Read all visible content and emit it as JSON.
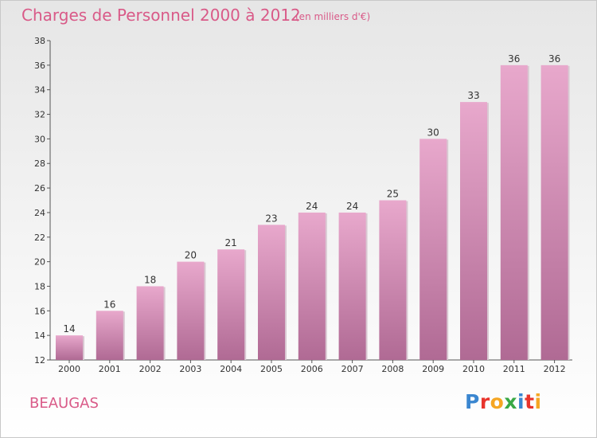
{
  "header": {
    "title": "Charges de Personnel 2000 à 2012",
    "subtitle": "(en milliers d'€)"
  },
  "footer": {
    "town": "BEAUGAS",
    "logo": "Proxiti",
    "logo_colors": [
      "#3a86d0",
      "#e8342c",
      "#f5a623",
      "#39a845",
      "#3a86d0",
      "#e8342c",
      "#f5a623"
    ]
  },
  "chart_data": {
    "type": "bar",
    "title": "Charges de Personnel 2000 à 2012",
    "subtitle": "(en milliers d'€)",
    "xlabel": "",
    "ylabel": "",
    "categories": [
      "2000",
      "2001",
      "2002",
      "2003",
      "2004",
      "2005",
      "2006",
      "2007",
      "2008",
      "2009",
      "2010",
      "2011",
      "2012"
    ],
    "values": [
      14,
      16,
      18,
      20,
      21,
      23,
      24,
      24,
      25,
      30,
      33,
      36,
      36
    ],
    "ylim": [
      12,
      38
    ],
    "yticks": [
      "12",
      "14",
      "16",
      "18",
      "20",
      "22",
      "24",
      "26",
      "28",
      "30",
      "32",
      "34",
      "36",
      "38"
    ],
    "grid": false,
    "bar_color_top": "#e8a8cc",
    "bar_color_bottom": "#b06a94"
  }
}
